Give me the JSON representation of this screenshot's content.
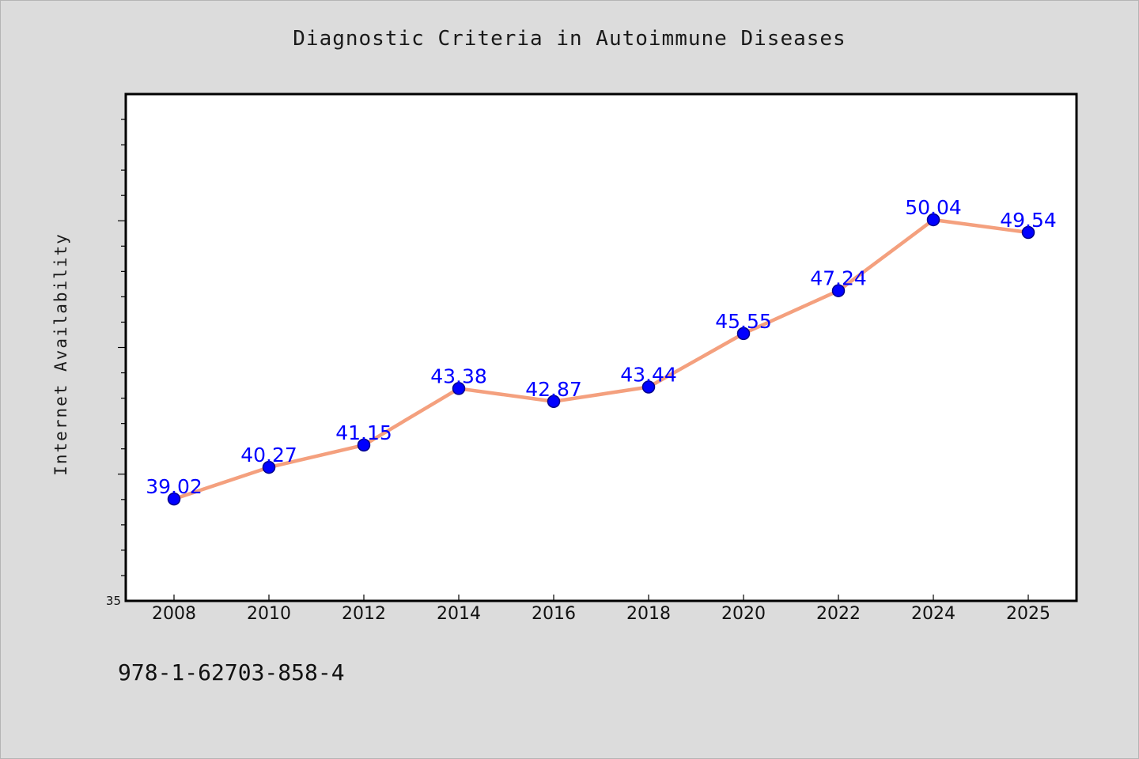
{
  "chart_data": {
    "type": "line",
    "title": "Diagnostic Criteria in Autoimmune Diseases",
    "xlabel": "",
    "ylabel": "Internet Availability",
    "categories": [
      "2008",
      "2010",
      "2012",
      "2014",
      "2016",
      "2018",
      "2020",
      "2022",
      "2024",
      "2025"
    ],
    "series": [
      {
        "values": [
          39.02,
          40.27,
          41.15,
          43.38,
          42.87,
          43.44,
          45.55,
          47.24,
          50.04,
          49.54
        ],
        "data_labels": [
          "39.02",
          "40.27",
          "41.15",
          "43.38",
          "42.87",
          "43.44",
          "45.55",
          "47.24",
          "50.04",
          "49.54"
        ]
      }
    ],
    "ylim": [
      35,
      55
    ],
    "y_tick_labels": [
      "35"
    ],
    "grid": false,
    "legend": "none",
    "colors": {
      "line": "#f4a07e",
      "marker": "#0000ff",
      "marker_edge": "#00008b",
      "data_label": "#0000ff",
      "plot_background": "#ffffff",
      "figure_background": "#dcdcdc"
    }
  },
  "footer": {
    "code": "978-1-62703-858-4"
  }
}
